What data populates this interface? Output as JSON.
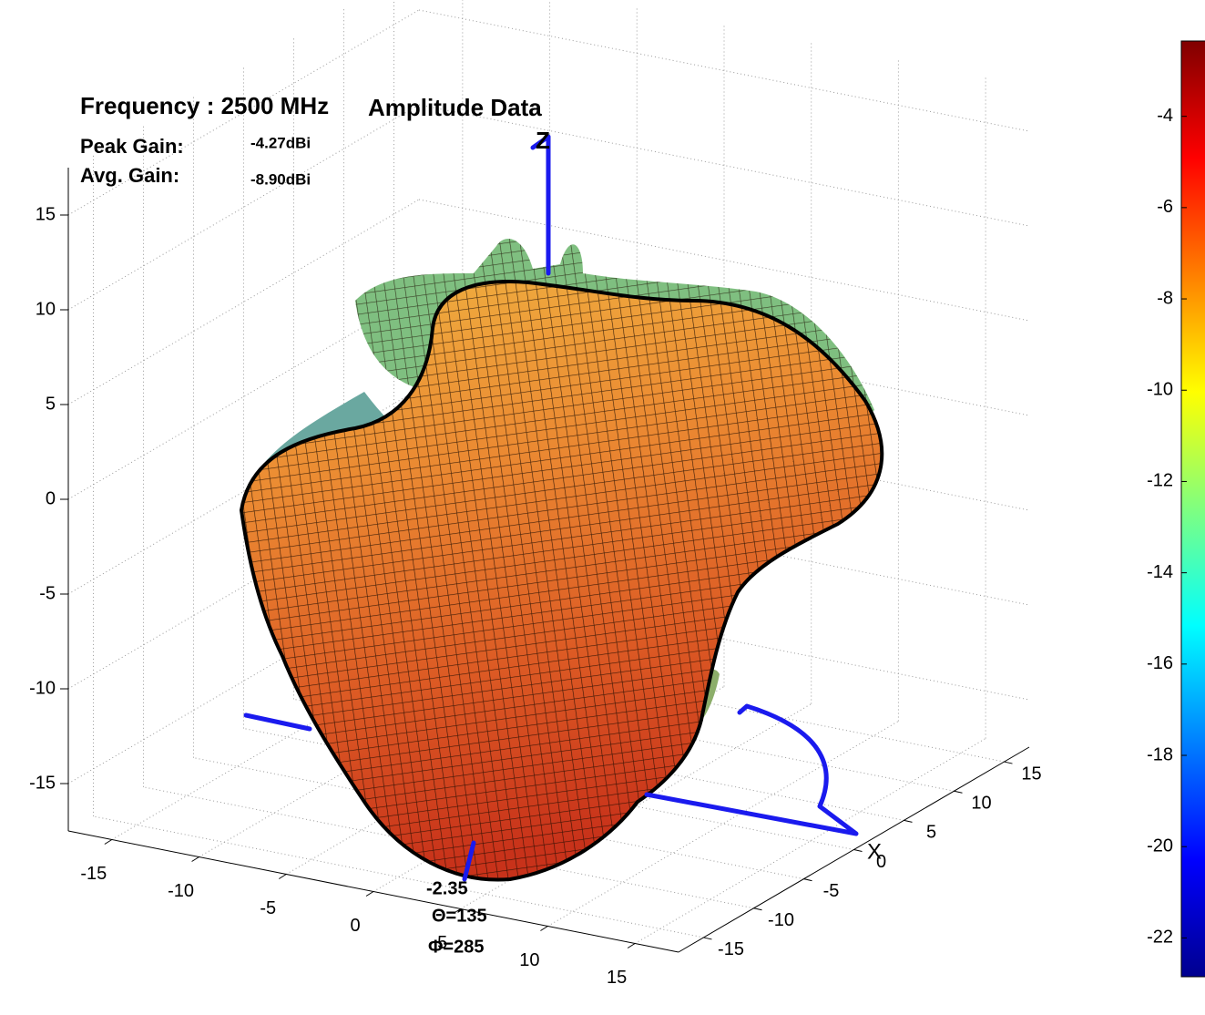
{
  "chart_data": {
    "type": "surface3d",
    "annotations": {
      "frequency": "Frequency : 2500 MHz",
      "data_kind": "Amplitude Data",
      "peak_label": "Peak Gain:",
      "peak_value": "-4.27dBi",
      "avg_label": "Avg.  Gain:",
      "avg_value": "-8.90dBi",
      "z_axis": "Z",
      "x_axis": "X",
      "cursor_value": "-2.35",
      "cursor_theta": "Θ=135",
      "cursor_phi": "Φ=285"
    },
    "xlim": [
      -17.5,
      17.5
    ],
    "xticks": [
      -15,
      -10,
      -5,
      0,
      5,
      10,
      15
    ],
    "ylim": [
      -17.5,
      17.5
    ],
    "yticks": [
      -15,
      -10,
      -5,
      0,
      5,
      10,
      15
    ],
    "zlim": [
      -17.5,
      17.5
    ],
    "zticks": [
      -15,
      -10,
      -5,
      0,
      5,
      10,
      15
    ],
    "grid": true,
    "colormap": "jet",
    "clim": [
      -22.85,
      -2.35
    ],
    "cticks": [
      -22,
      -20,
      -18,
      -16,
      -14,
      -12,
      -10,
      -8,
      -6,
      -4
    ]
  }
}
